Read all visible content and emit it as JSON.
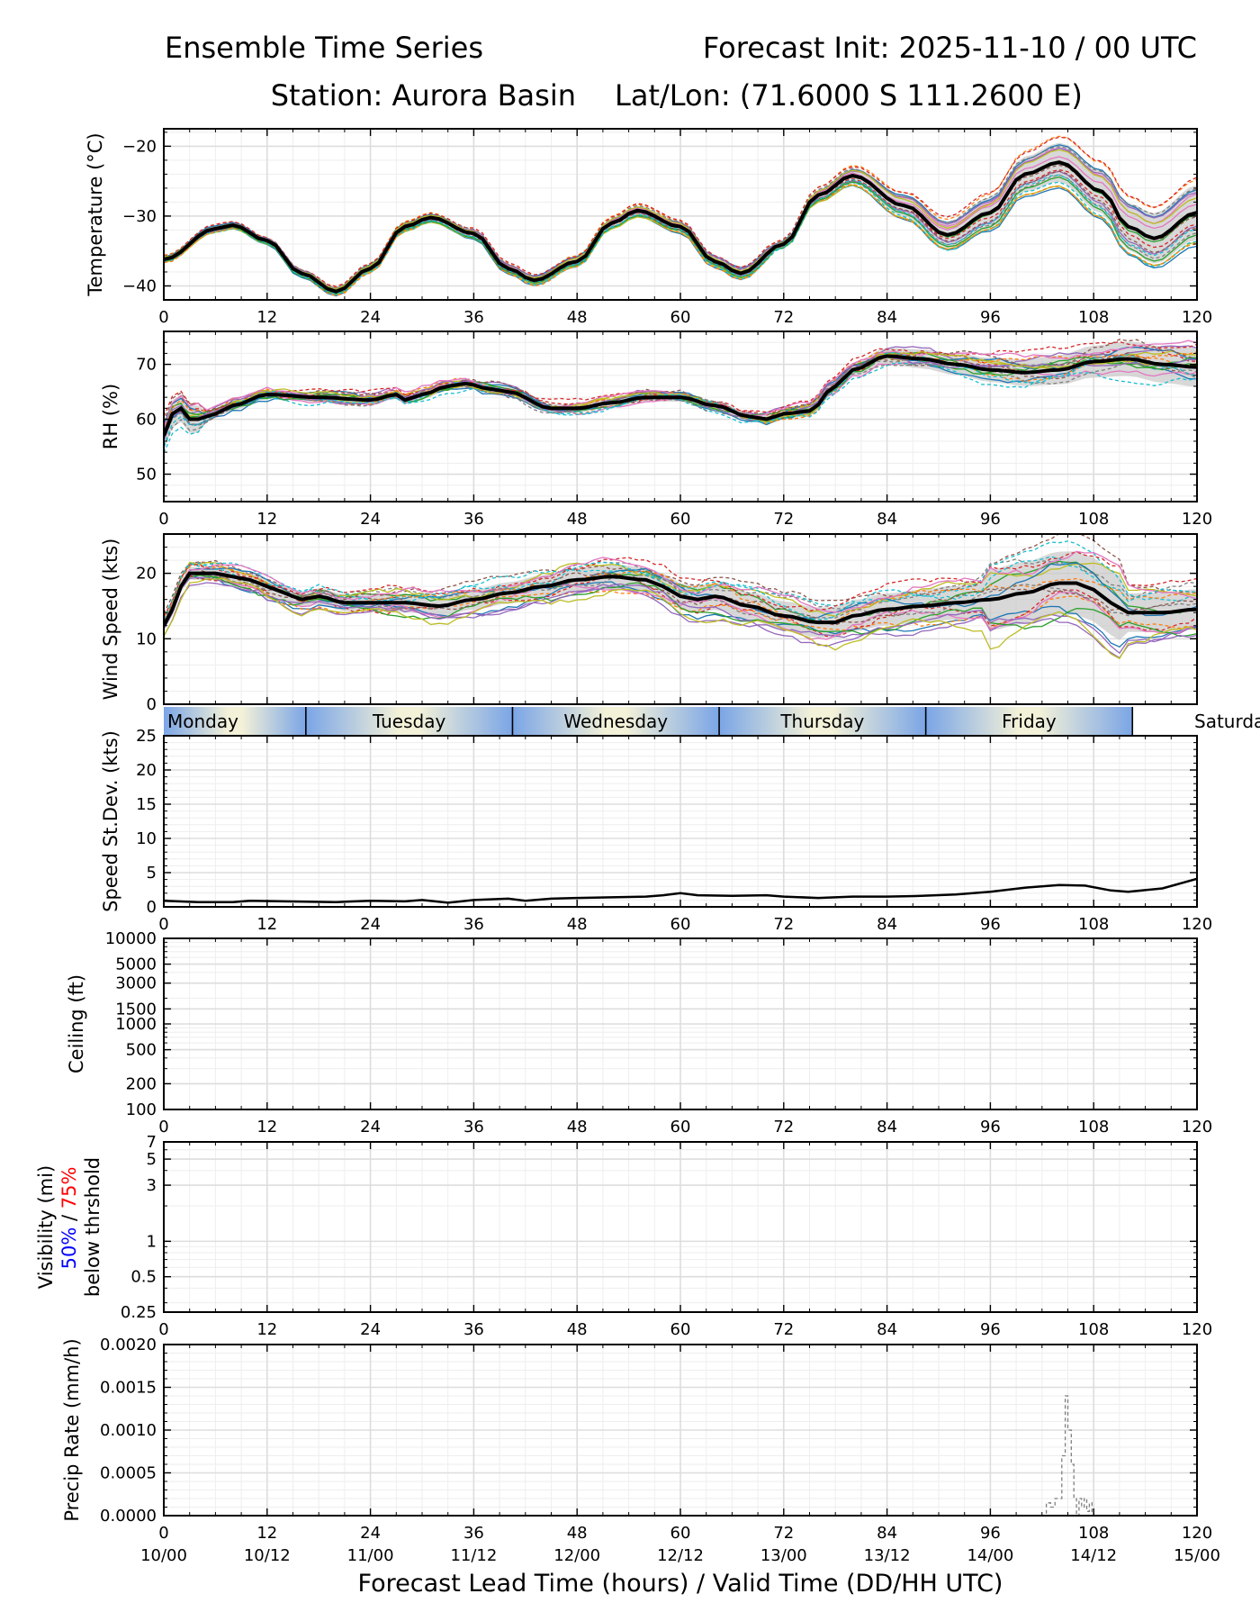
{
  "header": {
    "title_left": "Ensemble Time Series",
    "title_right": "Forecast Init: 2025-11-10 / 00 UTC",
    "station": "Station: Aurora Basin",
    "latlon": "Lat/Lon: (71.6000 S 111.2600 E)"
  },
  "colors": {
    "members": [
      "#1f77b4",
      "#ff7f0e",
      "#2ca02c",
      "#d62728",
      "#9467bd",
      "#8c564b",
      "#e377c2",
      "#7f7f7f",
      "#bcbd22",
      "#17becf"
    ],
    "mean": "#000000",
    "spread": "#c8c8c8",
    "day_band_light": "#f3f1d8",
    "day_band_blue": "#7aa5e6",
    "vis_50": "#0000ff",
    "vis_75": "#ff0000"
  },
  "days": {
    "labels": [
      "Monday",
      "Tuesday",
      "Wednesday",
      "Thursday",
      "Friday",
      "Saturda"
    ],
    "boundaries_hours": [
      16.5,
      40.5,
      64.5,
      88.5,
      112.5
    ]
  },
  "x_axis": {
    "xlabel": "Forecast Lead Time (hours) / Valid Time (DD/HH UTC)",
    "ticks": [
      0,
      12,
      24,
      36,
      48,
      60,
      72,
      84,
      96,
      108,
      120
    ],
    "tick_labels": [
      "0",
      "12",
      "24",
      "36",
      "48",
      "60",
      "72",
      "84",
      "96",
      "108",
      "120"
    ],
    "valid_time_labels": [
      "10/00",
      "10/12",
      "11/00",
      "11/12",
      "12/00",
      "12/12",
      "13/00",
      "13/12",
      "14/00",
      "14/12",
      "15/00"
    ],
    "xlim": [
      0,
      120
    ]
  },
  "chart_data": [
    {
      "id": "temperature",
      "type": "line",
      "ylabel": "Temperature (°C)",
      "ylim": [
        -42,
        -17.5
      ],
      "yticks": [
        -40,
        -30,
        -20
      ],
      "ytick_labels": [
        "−40",
        "−30",
        "−20"
      ],
      "grid": true,
      "mean": {
        "x": [
          0,
          6,
          8,
          12,
          16,
          20,
          24,
          28,
          31,
          36,
          40,
          43,
          48,
          52,
          55,
          60,
          64,
          67,
          72,
          76,
          80,
          86,
          91,
          96,
          100,
          104,
          109,
          112,
          115,
          120
        ],
        "y": [
          -36.2,
          -31.8,
          -31.3,
          -33.5,
          -38.2,
          -40.8,
          -37.5,
          -31.5,
          -30.2,
          -32.5,
          -37.5,
          -39.2,
          -36.5,
          -31.0,
          -29.2,
          -31.5,
          -36.5,
          -38.2,
          -34.0,
          -27.0,
          -24.2,
          -28.5,
          -32.7,
          -29.5,
          -24.0,
          -22.3,
          -26.5,
          -31.5,
          -33.2,
          -29.5
        ]
      },
      "member_count": 20,
      "spread_grows_after_hour": 70
    },
    {
      "id": "rh",
      "type": "line",
      "ylabel": "RH (%)",
      "ylim": [
        45,
        76
      ],
      "yticks": [
        50,
        60,
        70
      ],
      "ytick_labels": [
        "50",
        "60",
        "70"
      ],
      "grid": true,
      "mean": {
        "x": [
          0,
          1,
          2,
          3,
          4,
          6,
          8,
          12,
          18,
          24,
          27,
          28,
          30,
          33,
          35,
          38,
          40,
          45,
          48,
          52,
          56,
          60,
          64,
          68,
          70,
          72,
          75,
          78,
          80,
          84,
          88,
          92,
          96,
          100,
          104,
          108,
          112,
          116,
          120
        ],
        "y": [
          57,
          61,
          62,
          60,
          60,
          61,
          62.5,
          64.5,
          64,
          63.5,
          64.5,
          63.5,
          64.5,
          66,
          66.5,
          65.5,
          65,
          62,
          62,
          63,
          64,
          64,
          62.5,
          60.5,
          60,
          61,
          61.5,
          66,
          69,
          71.5,
          71,
          70,
          69,
          68.5,
          69,
          70.5,
          71,
          70,
          69.5
        ]
      },
      "member_count": 20
    },
    {
      "id": "wind_speed",
      "type": "line",
      "ylabel": "Wind Speed (kts)",
      "ylim": [
        0,
        26
      ],
      "yticks": [
        0,
        10,
        20
      ],
      "ytick_labels": [
        "0",
        "10",
        "20"
      ],
      "grid": true,
      "mean": {
        "x": [
          0,
          1,
          2,
          3,
          4,
          6,
          8,
          10,
          12,
          14,
          16,
          18,
          21,
          24,
          28,
          32,
          36,
          40,
          44,
          48,
          52,
          56,
          58,
          60,
          62,
          64,
          68,
          72,
          76,
          78,
          80,
          84,
          88,
          92,
          96,
          100,
          104,
          106,
          108,
          110,
          112,
          116,
          120
        ],
        "y": [
          12,
          14.5,
          18,
          20,
          20,
          20,
          19.5,
          19,
          18,
          17,
          16,
          16.5,
          15.5,
          15.5,
          15.5,
          15,
          16,
          17,
          18,
          19,
          19.5,
          19,
          18,
          16.5,
          16,
          16.5,
          15,
          13.5,
          12.5,
          12.5,
          13.5,
          14.5,
          15,
          15.5,
          16,
          17,
          18.5,
          18.5,
          17.5,
          15.5,
          14,
          14,
          14.5
        ]
      },
      "member_count": 20
    },
    {
      "id": "speed_stdev",
      "type": "line",
      "ylabel": "Speed St.Dev. (kts)",
      "ylim": [
        0,
        25
      ],
      "yticks": [
        0,
        5,
        10,
        15,
        20,
        25
      ],
      "ytick_labels": [
        "0",
        "5",
        "10",
        "15",
        "20",
        "25"
      ],
      "grid": true,
      "series": [
        {
          "name": "stdev",
          "x": [
            0,
            4,
            8,
            10,
            14,
            20,
            24,
            28,
            30,
            33,
            36,
            40,
            42,
            45,
            48,
            52,
            56,
            58,
            60,
            62,
            66,
            70,
            72,
            76,
            80,
            84,
            88,
            92,
            96,
            100,
            104,
            107,
            110,
            112,
            116,
            120
          ],
          "values": [
            0.9,
            0.7,
            0.7,
            0.9,
            0.8,
            0.7,
            0.9,
            0.8,
            1.0,
            0.6,
            1.0,
            1.2,
            0.9,
            1.2,
            1.3,
            1.4,
            1.5,
            1.7,
            2.0,
            1.7,
            1.6,
            1.7,
            1.5,
            1.3,
            1.5,
            1.5,
            1.6,
            1.8,
            2.2,
            2.8,
            3.2,
            3.1,
            2.4,
            2.2,
            2.7,
            4.1
          ]
        }
      ]
    },
    {
      "id": "ceiling",
      "type": "line",
      "ylabel": "Ceiling (ft)",
      "yscale": "log",
      "ylim": [
        100,
        10000
      ],
      "yticks": [
        100,
        200,
        500,
        1000,
        1500,
        3000,
        5000,
        10000
      ],
      "ytick_labels": [
        "100",
        "200",
        "500",
        "1000",
        "1500",
        "3000",
        "5000",
        "10000"
      ],
      "grid": true,
      "series": []
    },
    {
      "id": "visibility",
      "type": "line",
      "ylabel": "Visibility (mi)",
      "ylabel_50": "50%",
      "ylabel_sep": " / ",
      "ylabel_75": "75%",
      "ylabel_below": "below thrshold",
      "yscale": "log",
      "ylim": [
        0.25,
        7
      ],
      "yticks": [
        0.25,
        0.5,
        1,
        3,
        5,
        7
      ],
      "ytick_labels": [
        "0.25",
        "0.5",
        "1",
        "3",
        "5",
        "7"
      ],
      "grid": true,
      "series": []
    },
    {
      "id": "precip_rate",
      "type": "line",
      "ylabel": "Precip Rate (mm/h)",
      "ylim": [
        0,
        0.002
      ],
      "yticks": [
        0,
        0.0005,
        0.001,
        0.0015,
        0.002
      ],
      "ytick_labels": [
        "0.0000",
        "0.0005",
        "0.0010",
        "0.0015",
        "0.0020"
      ],
      "grid": true,
      "series": [
        {
          "name": "member",
          "x": [
            102,
            102.5,
            103,
            103.5,
            104,
            104.3,
            104.7,
            105.0,
            105.4,
            105.7,
            106,
            106.3,
            106.6,
            106.9,
            107.2,
            107.5,
            107.8
          ],
          "values": [
            0,
            0.00015,
            0.0001,
            0.0002,
            0.0002,
            0.0007,
            0.0014,
            0.001,
            0.0006,
            0.0002,
            0,
            0.0002,
            0.0001,
            0.0002,
            5e-05,
            0.00015,
            0
          ]
        }
      ]
    }
  ]
}
